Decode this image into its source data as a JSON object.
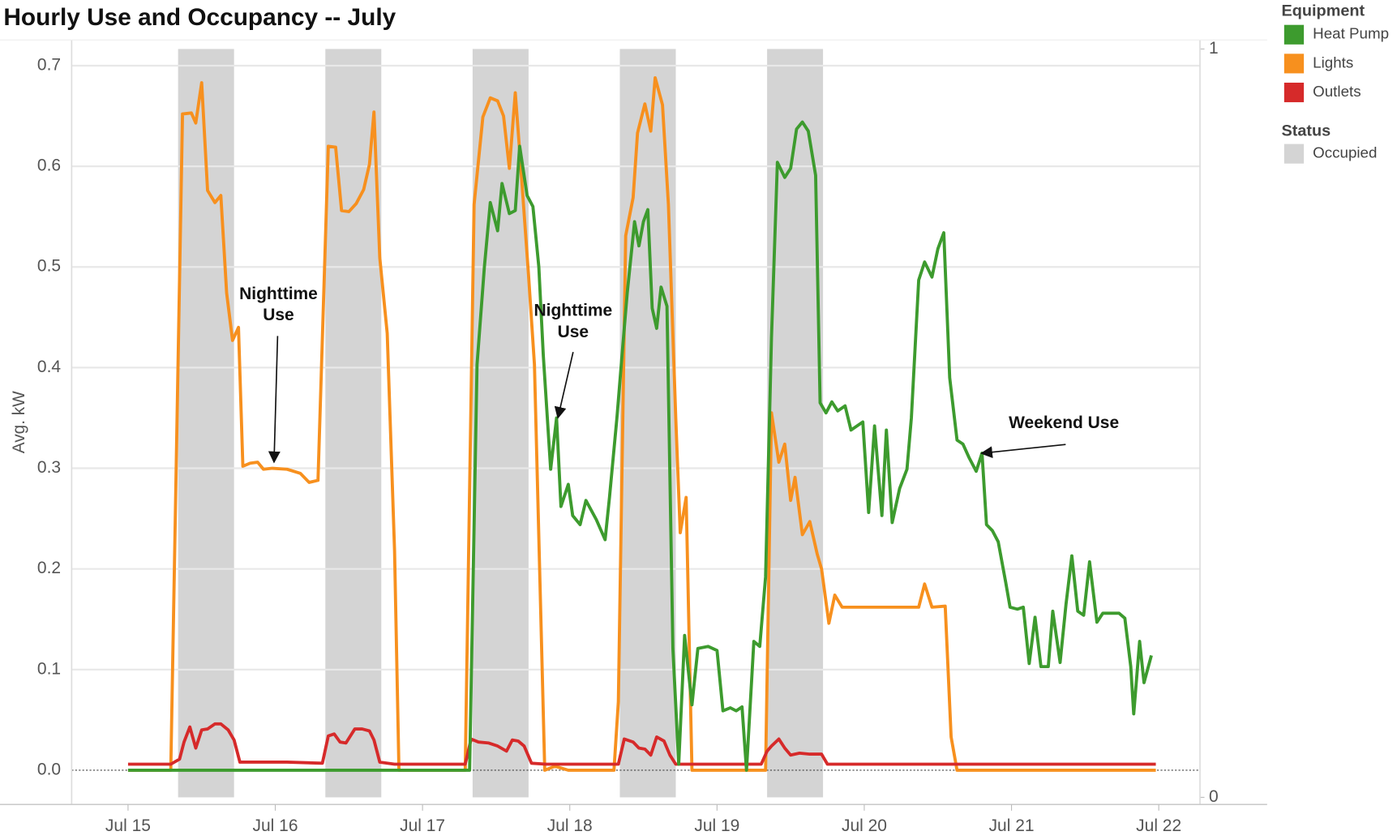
{
  "chart_data": {
    "type": "line",
    "title": "Hourly Use and Occupancy -- July",
    "y_label": "Avg. kW",
    "xlim": [
      14.617,
      22.28
    ],
    "xticks": [
      {
        "value": 15,
        "label": "Jul 15"
      },
      {
        "value": 16,
        "label": "Jul 16"
      },
      {
        "value": 17,
        "label": "Jul 17"
      },
      {
        "value": 18,
        "label": "Jul 18"
      },
      {
        "value": 19,
        "label": "Jul 19"
      },
      {
        "value": 20,
        "label": "Jul 20"
      },
      {
        "value": 21,
        "label": "Jul 21"
      },
      {
        "value": 22,
        "label": "Jul 22"
      }
    ],
    "ylim": [
      -0.034,
      0.7255
    ],
    "yticks": [
      {
        "value": 0,
        "label": "0.0"
      },
      0.1,
      0.2,
      0.3,
      0.4,
      0.5,
      0.6,
      0.7
    ],
    "y2lim": [
      -0.0095,
      1.012
    ],
    "y2ticks": [
      0,
      1
    ],
    "grid": true,
    "legend_title": "Equipment",
    "series": [
      {
        "name": "Heat Pump",
        "color": "#3d9b2e",
        "x": [
          15.0,
          17.32,
          17.37,
          17.42,
          17.46,
          17.51,
          17.54,
          17.59,
          17.63,
          17.66,
          17.71,
          17.75,
          17.79,
          17.82,
          17.87,
          17.91,
          17.94,
          17.99,
          18.02,
          18.07,
          18.11,
          18.18,
          18.24,
          18.27,
          18.32,
          18.36,
          18.39,
          18.44,
          18.47,
          18.5,
          18.53,
          18.56,
          18.59,
          18.62,
          18.66,
          18.7,
          18.74,
          18.78,
          18.83,
          18.87,
          18.94,
          19.0,
          19.04,
          19.09,
          19.13,
          19.17,
          19.2,
          19.25,
          19.29,
          19.33,
          19.37,
          19.41,
          19.46,
          19.5,
          19.54,
          19.58,
          19.62,
          19.67,
          19.7,
          19.74,
          19.78,
          19.82,
          19.87,
          19.91,
          19.96,
          19.99,
          20.03,
          20.07,
          20.12,
          20.15,
          20.19,
          20.24,
          20.29,
          20.32,
          20.37,
          20.41,
          20.46,
          20.5,
          20.54,
          20.58,
          20.63,
          20.67,
          20.71,
          20.76,
          20.8,
          20.83,
          20.87,
          20.91,
          20.96,
          20.99,
          21.04,
          21.08,
          21.12,
          21.16,
          21.2,
          21.25,
          21.28,
          21.33,
          21.37,
          21.41,
          21.45,
          21.49,
          21.53,
          21.58,
          21.62,
          21.73,
          21.77,
          21.81,
          21.83,
          21.87,
          21.9,
          21.95
        ],
        "values": [
          0,
          0,
          0.403,
          0.5,
          0.564,
          0.536,
          0.583,
          0.553,
          0.556,
          0.62,
          0.571,
          0.56,
          0.5,
          0.412,
          0.299,
          0.35,
          0.262,
          0.284,
          0.253,
          0.244,
          0.268,
          0.249,
          0.229,
          0.271,
          0.35,
          0.421,
          0.474,
          0.545,
          0.521,
          0.545,
          0.557,
          0.459,
          0.439,
          0.48,
          0.461,
          0.121,
          0.006,
          0.134,
          0.065,
          0.121,
          0.123,
          0.119,
          0.059,
          0.062,
          0.059,
          0.063,
          0,
          0.128,
          0.123,
          0.192,
          0.43,
          0.604,
          0.589,
          0.598,
          0.637,
          0.644,
          0.635,
          0.591,
          0.365,
          0.355,
          0.366,
          0.357,
          0.362,
          0.338,
          0.343,
          0.346,
          0.256,
          0.342,
          0.253,
          0.338,
          0.246,
          0.28,
          0.299,
          0.35,
          0.487,
          0.505,
          0.49,
          0.518,
          0.534,
          0.39,
          0.328,
          0.324,
          0.311,
          0.297,
          0.315,
          0.244,
          0.238,
          0.227,
          0.187,
          0.162,
          0.16,
          0.162,
          0.106,
          0.152,
          0.103,
          0.103,
          0.158,
          0.107,
          0.165,
          0.213,
          0.158,
          0.154,
          0.207,
          0.147,
          0.156,
          0.156,
          0.151,
          0.103,
          0.056,
          0.128,
          0.087,
          0.114
        ]
      },
      {
        "name": "Lights",
        "color": "#f7901e",
        "x": [
          15.0,
          15.29,
          15.37,
          15.43,
          15.46,
          15.5,
          15.54,
          15.59,
          15.63,
          15.67,
          15.71,
          15.75,
          15.78,
          15.83,
          15.88,
          15.92,
          15.98,
          16.08,
          16.17,
          16.23,
          16.29,
          16.36,
          16.41,
          16.45,
          16.5,
          16.55,
          16.6,
          16.64,
          16.67,
          16.71,
          16.76,
          16.81,
          16.84,
          17.29,
          17.35,
          17.41,
          17.46,
          17.51,
          17.55,
          17.59,
          17.63,
          17.66,
          17.72,
          17.76,
          17.83,
          17.9,
          17.99,
          18.3,
          18.33,
          18.38,
          18.43,
          18.46,
          18.51,
          18.55,
          18.58,
          18.63,
          18.67,
          18.72,
          18.75,
          18.79,
          18.83,
          19.33,
          19.37,
          19.42,
          19.46,
          19.5,
          19.53,
          19.58,
          19.63,
          19.68,
          19.71,
          19.76,
          19.8,
          19.85,
          20.37,
          20.41,
          20.46,
          20.55,
          20.59,
          20.63,
          21.98
        ],
        "values": [
          0,
          0,
          0.652,
          0.653,
          0.643,
          0.683,
          0.576,
          0.564,
          0.571,
          0.474,
          0.427,
          0.44,
          0.302,
          0.305,
          0.306,
          0.299,
          0.3,
          0.299,
          0.295,
          0.286,
          0.288,
          0.62,
          0.619,
          0.556,
          0.555,
          0.563,
          0.577,
          0.602,
          0.654,
          0.509,
          0.434,
          0.218,
          0,
          0,
          0.562,
          0.649,
          0.668,
          0.665,
          0.65,
          0.598,
          0.673,
          0.615,
          0.492,
          0.403,
          0,
          0.004,
          0,
          0,
          0.068,
          0.531,
          0.569,
          0.633,
          0.662,
          0.635,
          0.688,
          0.661,
          0.562,
          0.35,
          0.236,
          0.271,
          0,
          0,
          0.355,
          0.306,
          0.324,
          0.268,
          0.291,
          0.234,
          0.247,
          0.215,
          0.2,
          0.146,
          0.174,
          0.162,
          0.162,
          0.185,
          0.162,
          0.163,
          0.033,
          0,
          0
        ]
      },
      {
        "name": "Outlets",
        "color": "#d62a2a",
        "x": [
          15.0,
          15.29,
          15.35,
          15.38,
          15.42,
          15.46,
          15.5,
          15.54,
          15.59,
          15.63,
          15.68,
          15.72,
          15.76,
          16.08,
          16.32,
          16.36,
          16.4,
          16.44,
          16.48,
          16.54,
          16.59,
          16.64,
          16.67,
          16.71,
          16.81,
          17.29,
          17.33,
          17.38,
          17.45,
          17.51,
          17.57,
          17.61,
          17.65,
          17.69,
          17.74,
          17.84,
          18.33,
          18.37,
          18.43,
          18.47,
          18.51,
          18.55,
          18.59,
          18.64,
          18.68,
          18.72,
          19.3,
          19.34,
          19.37,
          19.42,
          19.46,
          19.5,
          19.56,
          19.63,
          19.71,
          19.75,
          21.98
        ],
        "values": [
          0.006,
          0.006,
          0.011,
          0.028,
          0.043,
          0.022,
          0.04,
          0.041,
          0.046,
          0.046,
          0.04,
          0.03,
          0.008,
          0.008,
          0.007,
          0.034,
          0.036,
          0.028,
          0.027,
          0.041,
          0.041,
          0.039,
          0.03,
          0.008,
          0.006,
          0.006,
          0.031,
          0.028,
          0.027,
          0.024,
          0.019,
          0.03,
          0.029,
          0.024,
          0.007,
          0.006,
          0.006,
          0.031,
          0.028,
          0.022,
          0.021,
          0.015,
          0.033,
          0.029,
          0.015,
          0.006,
          0.006,
          0.019,
          0.024,
          0.031,
          0.022,
          0.015,
          0.017,
          0.016,
          0.016,
          0.006,
          0.006
        ]
      }
    ],
    "status": {
      "title": "Status",
      "name": "Occupied",
      "color": "#d4d4d4",
      "axis": "y2",
      "periods": [
        [
          15.34,
          15.72
        ],
        [
          16.34,
          16.72
        ],
        [
          17.34,
          17.72
        ],
        [
          18.34,
          18.72
        ],
        [
          19.34,
          19.72
        ]
      ]
    },
    "annotations": [
      {
        "lines": [
          "Nighttime",
          "Use"
        ]
      },
      {
        "lines": [
          "Nighttime",
          "Use"
        ]
      },
      {
        "lines": [
          "Weekend Use"
        ]
      }
    ]
  }
}
